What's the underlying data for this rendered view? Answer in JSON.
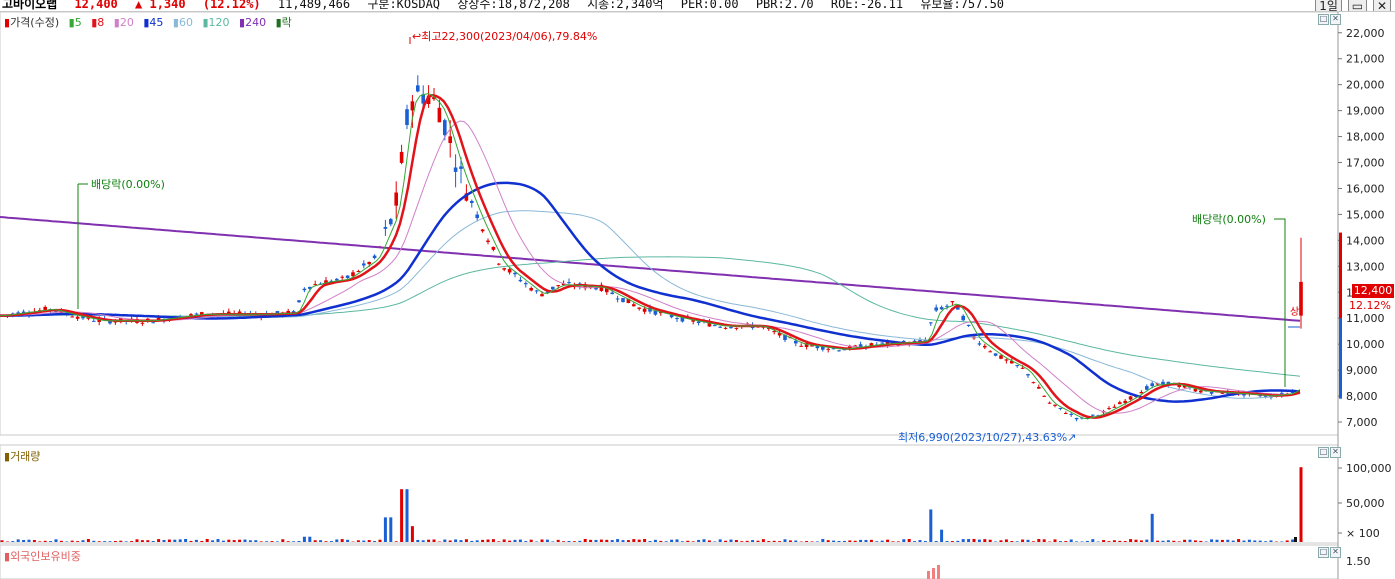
{
  "header": {
    "name": "고바이오랩",
    "price": "12,400",
    "change": "▲ 1,340",
    "change_pct": "(12.12%)",
    "volume": "11,489,466",
    "market": "구분:KOSDAQ",
    "shares": "상장수:18,872,208",
    "mktcap": "시총:2,340억",
    "per": "PER:0.00",
    "pbr": "PBR:2.70",
    "roe": "ROE:-26.11",
    "float": "유보율:757.50",
    "period": "1일"
  },
  "legend": {
    "price": "가격(수정)",
    "ma5": "5",
    "ma8": "8",
    "ma20": "20",
    "ma45": "45",
    "ma60": "60",
    "ma120": "120",
    "ma240": "240",
    "ex": "락"
  },
  "colors": {
    "up": "#e00000",
    "down": "#1a5fd4",
    "ma5": "#35a835",
    "ma8": "#e0141a",
    "ma20": "#d080c8",
    "ma45": "#1030d0",
    "ma60": "#8ab8d8",
    "ma120": "#5cb8a0",
    "ma240": "#8030b0"
  },
  "annotations": {
    "high": "최고22,300(2023/04/06),79.84%",
    "low": "최저6,990(2023/10/27),43.63%",
    "dividend1": "배당락(0.00%)",
    "dividend2": "배당락(0.00%)",
    "vertical_marker": "상"
  },
  "current": {
    "badge": "12,400",
    "pct": "12.12%"
  },
  "panels": {
    "volume_label": "거래량",
    "foreign_label": "외국인보유비중"
  },
  "chart_data": {
    "type": "candlestick",
    "price_axis": [
      "22,000",
      "21,000",
      "20,000",
      "19,000",
      "18,000",
      "17,000",
      "16,000",
      "15,000",
      "14,000",
      "13,000",
      "12,000",
      "11,000",
      "10,000",
      "9,000",
      "8,000",
      "7,000"
    ],
    "price_range": [
      6500,
      22800
    ],
    "volume_axis": [
      "100,000",
      "50,000",
      "× 100"
    ],
    "foreign_axis": [
      "1.50"
    ],
    "high": 22300,
    "low": 6990,
    "last": 12400
  }
}
